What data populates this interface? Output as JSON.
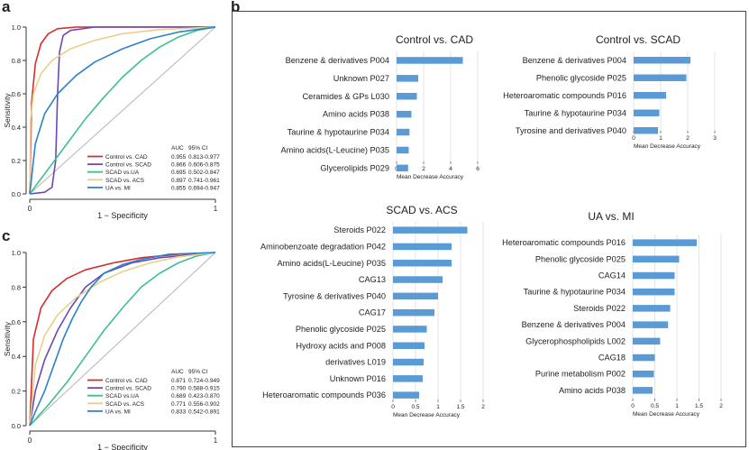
{
  "panel_labels": {
    "a": "a",
    "b": "b",
    "c": "c"
  },
  "colors": {
    "control_cad": "#d92b2b",
    "control_scad": "#6b48b8",
    "scad_ua": "#3cc08e",
    "scad_acs": "#e8d08a",
    "ua_mi": "#2a82c8",
    "bar": "#5b9bd5",
    "diagonal": "#b5b5b5"
  },
  "chart_data": [
    {
      "id": "a",
      "type": "line",
      "subtype": "roc",
      "xlabel": "1 − Specificity",
      "ylabel": "Sensitivity",
      "xticks": [
        "0",
        "1"
      ],
      "yticks": [
        "0.0",
        "0.2",
        "0.4",
        "0.6",
        "0.8",
        "1.0"
      ],
      "xlim": [
        0,
        1
      ],
      "ylim": [
        0,
        1
      ],
      "legend_header": {
        "auc": "AUC",
        "ci": "95% CI"
      },
      "legend_position": "bottom-right",
      "series": [
        {
          "name": "Control vs. CAD",
          "auc": "0.955",
          "ci": "0.813-0.977",
          "color": "control_cad",
          "points": [
            [
              0,
              0
            ],
            [
              0.01,
              0.55
            ],
            [
              0.03,
              0.78
            ],
            [
              0.06,
              0.9
            ],
            [
              0.1,
              0.96
            ],
            [
              0.15,
              0.99
            ],
            [
              0.25,
              1
            ],
            [
              1,
              1
            ]
          ]
        },
        {
          "name": "Control vs. SCAD",
          "auc": "0.866",
          "ci": "0.606-0.875",
          "color": "control_scad",
          "points": [
            [
              0,
              0
            ],
            [
              0.08,
              0.01
            ],
            [
              0.12,
              0.04
            ],
            [
              0.14,
              0.2
            ],
            [
              0.15,
              0.6
            ],
            [
              0.16,
              0.85
            ],
            [
              0.18,
              0.95
            ],
            [
              0.22,
              0.98
            ],
            [
              0.35,
              1
            ],
            [
              1,
              1
            ]
          ]
        },
        {
          "name": "SCAD vs.UA",
          "auc": "0.695",
          "ci": "0.502-0.847",
          "color": "scad_ua",
          "points": [
            [
              0,
              0
            ],
            [
              0.1,
              0.15
            ],
            [
              0.2,
              0.3
            ],
            [
              0.3,
              0.45
            ],
            [
              0.4,
              0.58
            ],
            [
              0.5,
              0.7
            ],
            [
              0.6,
              0.8
            ],
            [
              0.7,
              0.88
            ],
            [
              0.8,
              0.94
            ],
            [
              0.9,
              0.98
            ],
            [
              1,
              1
            ]
          ]
        },
        {
          "name": "SCAD vs. ACS",
          "auc": "0.897",
          "ci": "0.741-0.961",
          "color": "scad_acs",
          "points": [
            [
              0,
              0
            ],
            [
              0.005,
              0.45
            ],
            [
              0.02,
              0.6
            ],
            [
              0.06,
              0.72
            ],
            [
              0.12,
              0.8
            ],
            [
              0.22,
              0.87
            ],
            [
              0.35,
              0.92
            ],
            [
              0.5,
              0.96
            ],
            [
              0.7,
              0.985
            ],
            [
              1,
              1
            ]
          ]
        },
        {
          "name": "UA vs. MI",
          "auc": "0.855",
          "ci": "0.694-0.947",
          "color": "ua_mi",
          "points": [
            [
              0,
              0
            ],
            [
              0.03,
              0.3
            ],
            [
              0.08,
              0.48
            ],
            [
              0.15,
              0.6
            ],
            [
              0.25,
              0.71
            ],
            [
              0.35,
              0.79
            ],
            [
              0.5,
              0.87
            ],
            [
              0.65,
              0.93
            ],
            [
              0.8,
              0.97
            ],
            [
              1,
              1
            ]
          ]
        }
      ]
    },
    {
      "id": "c",
      "type": "line",
      "subtype": "roc",
      "xlabel": "1 − Specificity",
      "ylabel": "Sensitivity",
      "xticks": [
        "0",
        "1"
      ],
      "yticks": [
        "0.0",
        "0.2",
        "0.4",
        "0.6",
        "0.8",
        "1.0"
      ],
      "xlim": [
        0,
        1
      ],
      "ylim": [
        0,
        1
      ],
      "legend_header": {
        "auc": "AUC",
        "ci": "95% CI"
      },
      "legend_position": "bottom-right",
      "series": [
        {
          "name": "Control vs. CAD",
          "auc": "0.871",
          "ci": "0.724-0.949",
          "color": "control_cad",
          "points": [
            [
              0,
              0
            ],
            [
              0.02,
              0.5
            ],
            [
              0.06,
              0.68
            ],
            [
              0.12,
              0.78
            ],
            [
              0.2,
              0.85
            ],
            [
              0.3,
              0.9
            ],
            [
              0.45,
              0.94
            ],
            [
              0.6,
              0.97
            ],
            [
              0.8,
              0.99
            ],
            [
              1,
              1
            ]
          ]
        },
        {
          "name": "Control vs. SCAD",
          "auc": "0.790",
          "ci": "0.588-0.915",
          "color": "control_scad",
          "points": [
            [
              0,
              0
            ],
            [
              0.03,
              0.2
            ],
            [
              0.08,
              0.38
            ],
            [
              0.15,
              0.55
            ],
            [
              0.22,
              0.68
            ],
            [
              0.3,
              0.8
            ],
            [
              0.4,
              0.88
            ],
            [
              0.55,
              0.94
            ],
            [
              0.7,
              0.97
            ],
            [
              1,
              1
            ]
          ]
        },
        {
          "name": "SCAD vs.UA",
          "auc": "0.689",
          "ci": "0.423-0.870",
          "color": "scad_ua",
          "points": [
            [
              0,
              0
            ],
            [
              0.1,
              0.12
            ],
            [
              0.2,
              0.25
            ],
            [
              0.3,
              0.4
            ],
            [
              0.4,
              0.55
            ],
            [
              0.5,
              0.68
            ],
            [
              0.6,
              0.8
            ],
            [
              0.7,
              0.88
            ],
            [
              0.8,
              0.94
            ],
            [
              0.9,
              0.98
            ],
            [
              1,
              1
            ]
          ]
        },
        {
          "name": "SCAD vs. ACS",
          "auc": "0.771",
          "ci": "0.556-0.902",
          "color": "scad_acs",
          "points": [
            [
              0,
              0
            ],
            [
              0.03,
              0.35
            ],
            [
              0.08,
              0.52
            ],
            [
              0.15,
              0.64
            ],
            [
              0.25,
              0.74
            ],
            [
              0.38,
              0.83
            ],
            [
              0.5,
              0.89
            ],
            [
              0.65,
              0.94
            ],
            [
              0.8,
              0.975
            ],
            [
              1,
              1
            ]
          ]
        },
        {
          "name": "UA vs. MI",
          "auc": "0.833",
          "ci": "0.542-0.891",
          "color": "ua_mi",
          "points": [
            [
              0,
              0
            ],
            [
              0.03,
              0.08
            ],
            [
              0.08,
              0.2
            ],
            [
              0.13,
              0.35
            ],
            [
              0.18,
              0.5
            ],
            [
              0.23,
              0.62
            ],
            [
              0.28,
              0.72
            ],
            [
              0.33,
              0.8
            ],
            [
              0.4,
              0.88
            ],
            [
              0.5,
              0.93
            ],
            [
              0.6,
              0.96
            ],
            [
              0.75,
              0.99
            ],
            [
              1,
              1
            ]
          ]
        }
      ]
    },
    {
      "id": "b1",
      "type": "bar",
      "orientation": "horizontal",
      "title": "Control vs. CAD",
      "xlabel": "Mean Decrease Accuracy",
      "xticks": [
        0,
        2,
        4,
        6
      ],
      "xlim": [
        0,
        6
      ],
      "categories": [
        "Benzene & derivatives P004",
        "Unknown P027",
        "Ceramides & GPs L030",
        "Amino acids P038",
        "Taurine & hypotaurine P034",
        "Amino acids(L-Leucine) P035",
        "Glycerolipids P029"
      ],
      "values": [
        4.9,
        1.6,
        1.5,
        1.1,
        0.95,
        0.9,
        0.85
      ]
    },
    {
      "id": "b2",
      "type": "bar",
      "orientation": "horizontal",
      "title": "Control vs. SCAD",
      "xlabel": "Mean Decrease Accuracy",
      "xticks": [
        0,
        1,
        2,
        3
      ],
      "xlim": [
        0,
        3
      ],
      "categories": [
        "Benzene & derivatives P004",
        "Phenolic glycoside P025",
        "Heteroaromatic compounds P016",
        "Taurine & hypotaurine P034",
        "Tyrosine and derivatives P040"
      ],
      "values": [
        2.1,
        1.95,
        1.2,
        0.95,
        0.9
      ]
    },
    {
      "id": "b3",
      "type": "bar",
      "orientation": "horizontal",
      "title": "SCAD vs. ACS",
      "xlabel": "Mean Decrease Accuracy",
      "xticks": [
        0,
        0.5,
        1,
        1.5,
        2
      ],
      "xtick_labels": [
        "0",
        "0.5",
        "1",
        "1.5",
        "2"
      ],
      "xlim": [
        0,
        2
      ],
      "categories": [
        "Steroids P022",
        "Aminobenzoate degradation P042",
        "Amino acids(L-Leucine) P035",
        "CAG13",
        "Tyrosine & derivatives P040",
        "CAG17",
        "Phenolic glycoside P025",
        "Hydroxy acids and P008",
        "derivatives L019",
        "Unknown P016",
        "Heteroaromatic compounds P036"
      ],
      "values": [
        1.65,
        1.3,
        1.3,
        1.1,
        1.0,
        0.92,
        0.75,
        0.7,
        0.68,
        0.66,
        0.58
      ]
    },
    {
      "id": "b4",
      "type": "bar",
      "orientation": "horizontal",
      "title": "UA vs. MI",
      "xlabel": "Mean Decrease Accuracy",
      "xticks": [
        0,
        0.5,
        1,
        1.5,
        2
      ],
      "xtick_labels": [
        "0",
        "0.5",
        "1",
        "1.5",
        "2"
      ],
      "xlim": [
        0,
        2
      ],
      "categories": [
        "Heteroaromatic compounds P016",
        "Phenolic glycoside P025",
        "CAG14",
        "Taurine & hypotaurine P034",
        "Steroids P022",
        "Benzene & derivatives P004",
        "Glycerophospholipids L002",
        "CAG18",
        "Purine metabolism P002",
        "Amino acids P038"
      ],
      "values": [
        1.45,
        1.05,
        0.95,
        0.95,
        0.85,
        0.8,
        0.62,
        0.5,
        0.48,
        0.45
      ]
    }
  ]
}
